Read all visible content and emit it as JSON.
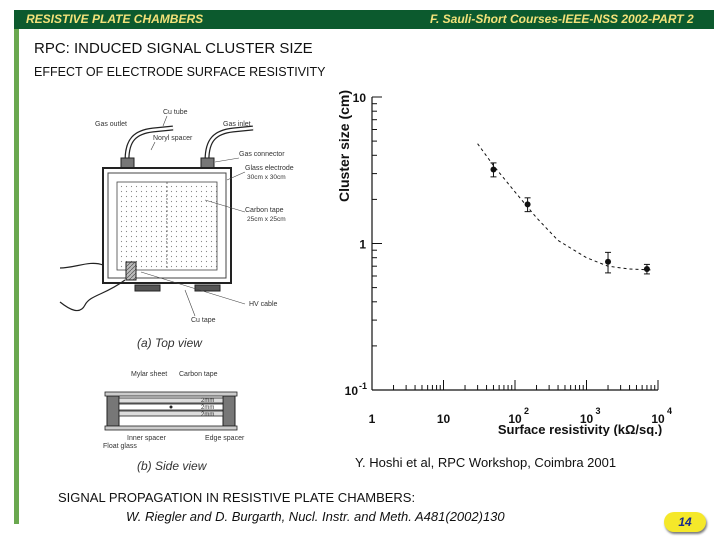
{
  "header": {
    "left": "RESISTIVE PLATE CHAMBERS",
    "right": "F. Sauli-Short Courses-IEEE-NSS 2002-PART 2"
  },
  "slide": {
    "title": "RPC:  INDUCED SIGNAL CLUSTER SIZE",
    "subtitle": "EFFECT OF ELECTRODE SURFACE RESISTIVITY",
    "citation": "Y. Hoshi et al,  RPC Workshop, Coimbra 2001",
    "reference_title": "SIGNAL PROPAGATION IN RESISTIVE PLATE CHAMBERS:",
    "reference_authors": "W. Riegler and D. Burgarth, Nucl. Instr. and Meth. A481(2002)130",
    "page_number": "14"
  },
  "diagram": {
    "labels": {
      "cu_tube": "Cu tube",
      "gas_outlet": "Gas outlet",
      "gas_inlet": "Gas inlet",
      "noryl_spacer": "Noryl spacer",
      "gas_connector": "Gas connector",
      "glass_electrode": "Glass electrode",
      "glass_size": "30cm x 30cm",
      "carbon_tape": "Carbon tape",
      "carbon_size": "25cm x 25cm",
      "hv_cable": "HV cable",
      "cu_tape": "Cu tape",
      "top_view": "(a)  Top view",
      "mylar_sheet": "Mylar sheet",
      "carbon_tape_side": "Carbon tape",
      "gap_2mm_1": "2mm",
      "gap_2mm_2": "2mm",
      "gap_2mm_3": "2mm",
      "inner_spacer": "Inner spacer",
      "edge_spacer": "Edge spacer",
      "float_glass": "Float glass",
      "side_view": "(b)  Side view"
    }
  },
  "chart_data": {
    "type": "scatter",
    "xlabel": "Surface resistivity (kΩ/sq.)",
    "ylabel": "Cluster size (cm)",
    "x_scale": "log",
    "y_scale": "log",
    "xlim": [
      1,
      10000
    ],
    "ylim": [
      0.1,
      10
    ],
    "x_ticks": [
      {
        "value": 1,
        "base": "1",
        "exp": ""
      },
      {
        "value": 10,
        "base": "10",
        "exp": ""
      },
      {
        "value": 100,
        "base": "10",
        "exp": "2"
      },
      {
        "value": 1000,
        "base": "10",
        "exp": "3"
      },
      {
        "value": 10000,
        "base": "10",
        "exp": "4"
      }
    ],
    "y_ticks": [
      {
        "value": 0.1,
        "base": "10",
        "exp": "-1"
      },
      {
        "value": 1,
        "base": "1",
        "exp": ""
      },
      {
        "value": 10,
        "base": "10",
        "exp": ""
      }
    ],
    "points": [
      {
        "x": 50,
        "y": 3.2,
        "err": 0.35
      },
      {
        "x": 150,
        "y": 1.85,
        "err": 0.2
      },
      {
        "x": 2000,
        "y": 0.75,
        "err": 0.12
      },
      {
        "x": 7000,
        "y": 0.67,
        "err": 0.05
      }
    ],
    "curve": [
      {
        "x": 30,
        "y": 4.8
      },
      {
        "x": 50,
        "y": 3.4
      },
      {
        "x": 100,
        "y": 2.25
      },
      {
        "x": 200,
        "y": 1.5
      },
      {
        "x": 400,
        "y": 1.05
      },
      {
        "x": 1000,
        "y": 0.8
      },
      {
        "x": 2000,
        "y": 0.7
      },
      {
        "x": 4000,
        "y": 0.67
      },
      {
        "x": 8000,
        "y": 0.66
      }
    ],
    "grid": false
  }
}
